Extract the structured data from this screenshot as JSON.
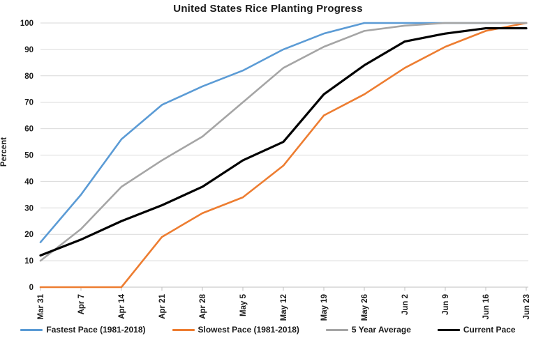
{
  "chart_data": {
    "type": "line",
    "title": "United States Rice Planting Progress",
    "xlabel": "",
    "ylabel": "Percent",
    "ylim": [
      0,
      100
    ],
    "y_ticks": [
      0,
      10,
      20,
      30,
      40,
      50,
      60,
      70,
      80,
      90,
      100
    ],
    "grid": "horizontal",
    "legend_position": "bottom",
    "gridline_color": "#d9d9d9",
    "axis_line_color": "#bfbfbf",
    "text_color": "#1a1a1a",
    "categories": [
      "Mar 31",
      "Apr 7",
      "Apr 14",
      "Apr 21",
      "Apr 28",
      "May 5",
      "May 12",
      "May 19",
      "May 26",
      "Jun 2",
      "Jun 9",
      "Jun 16",
      "Jun 23"
    ],
    "series": [
      {
        "name": "Fastest Pace (1981-2018)",
        "color": "#5b9bd5",
        "stroke_width": 2.6,
        "values": [
          17,
          35,
          56,
          69,
          76,
          82,
          90,
          96,
          100,
          100,
          100,
          100,
          100
        ]
      },
      {
        "name": "Slowest Pace (1981-2018)",
        "color": "#ed7d31",
        "stroke_width": 2.6,
        "values": [
          0,
          0,
          0,
          19,
          28,
          34,
          46,
          65,
          73,
          83,
          91,
          97,
          100
        ]
      },
      {
        "name": "5 Year Average",
        "color": "#a5a5a5",
        "stroke_width": 2.6,
        "values": [
          10,
          22,
          38,
          48,
          57,
          70,
          83,
          91,
          97,
          99,
          100,
          100,
          100
        ]
      },
      {
        "name": "Current Pace",
        "color": "#000000",
        "stroke_width": 3.2,
        "values": [
          12,
          18,
          25,
          31,
          38,
          48,
          55,
          73,
          84,
          93,
          96,
          98,
          98
        ]
      }
    ]
  }
}
